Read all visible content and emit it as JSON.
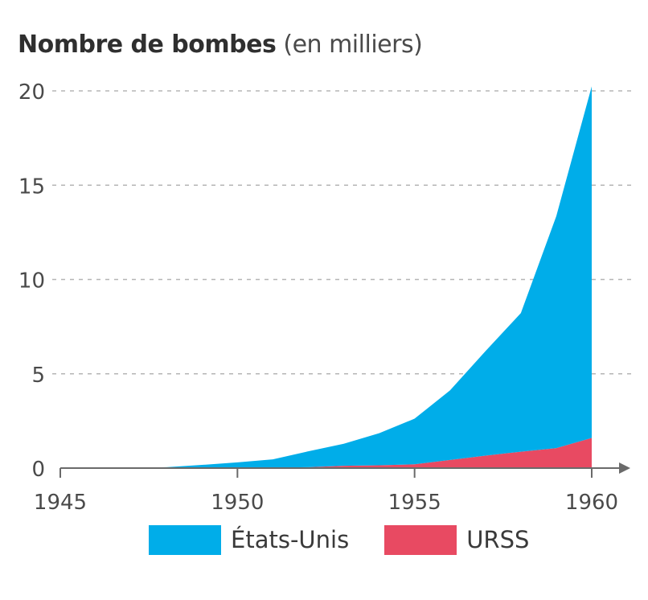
{
  "title": {
    "bold": "Nombre de bombes",
    "light": "(en milliers)"
  },
  "chart_data": {
    "type": "area",
    "stacked": true,
    "title": "Nombre de bombes (en milliers)",
    "xlabel": "",
    "ylabel": "",
    "xlim": [
      1945,
      1961
    ],
    "ylim": [
      0,
      20
    ],
    "xticks": [
      1945,
      1950,
      1955,
      1960
    ],
    "yticks": [
      0,
      5,
      10,
      15,
      20
    ],
    "grid": "horizontal dashed",
    "legend_position": "bottom",
    "x": [
      1945,
      1946,
      1947,
      1948,
      1949,
      1950,
      1951,
      1952,
      1953,
      1954,
      1955,
      1956,
      1957,
      1958,
      1959,
      1960
    ],
    "series": [
      {
        "name": "URSS",
        "color": "#e84a62",
        "values": [
          0,
          0,
          0,
          0,
          0,
          0.005,
          0.025,
          0.05,
          0.12,
          0.15,
          0.2,
          0.43,
          0.66,
          0.87,
          1.06,
          1.6
        ]
      },
      {
        "name": "États-Unis",
        "color": "#00ade9",
        "values": [
          0.002,
          0.009,
          0.013,
          0.05,
          0.17,
          0.3,
          0.44,
          0.84,
          1.17,
          1.7,
          2.42,
          3.69,
          5.54,
          7.35,
          12.3,
          18.64
        ]
      }
    ]
  }
}
